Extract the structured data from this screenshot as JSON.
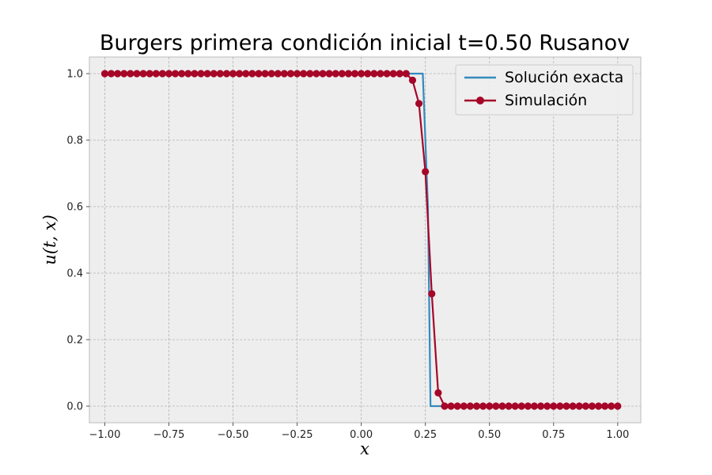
{
  "chart_data": {
    "type": "line",
    "title": "Burgers primera condición inicial t=0.50 Rusanov",
    "xlabel": "x",
    "ylabel": "u(t, x)",
    "xlim": [
      -1.06,
      1.09
    ],
    "ylim": [
      -0.05,
      1.05
    ],
    "x_ticks": [
      -1.0,
      -0.75,
      -0.5,
      -0.25,
      0.0,
      0.25,
      0.5,
      0.75,
      1.0
    ],
    "x_tick_labels": [
      "−1.00",
      "−0.75",
      "−0.50",
      "−0.25",
      "0.00",
      "0.25",
      "0.50",
      "0.75",
      "1.00"
    ],
    "y_ticks": [
      0.0,
      0.2,
      0.4,
      0.6,
      0.8,
      1.0
    ],
    "y_tick_labels": [
      "0.0",
      "0.2",
      "0.4",
      "0.6",
      "0.8",
      "1.0"
    ],
    "grid": true,
    "legend": "top-right",
    "colors": {
      "exact": "#348abd",
      "simulation": "#a60628",
      "axes_bg": "#eeeeee",
      "grid": "#b2b2b2",
      "spine": "#bcbcbc"
    },
    "series": [
      {
        "name": "Solución exacta",
        "marker": "none",
        "x": [
          -1.0,
          0.24,
          0.26,
          0.27,
          1.0
        ],
        "y": [
          1.0,
          1.0,
          0.6,
          0.0,
          0.0
        ]
      },
      {
        "name": "Simulación",
        "marker": "o",
        "x": [
          -1.0,
          -0.975,
          -0.95,
          -0.925,
          -0.9,
          -0.875,
          -0.85,
          -0.825,
          -0.8,
          -0.775,
          -0.75,
          -0.725,
          -0.7,
          -0.675,
          -0.65,
          -0.625,
          -0.6,
          -0.575,
          -0.55,
          -0.525,
          -0.5,
          -0.475,
          -0.45,
          -0.425,
          -0.4,
          -0.375,
          -0.35,
          -0.325,
          -0.3,
          -0.275,
          -0.25,
          -0.225,
          -0.2,
          -0.175,
          -0.15,
          -0.125,
          -0.1,
          -0.075,
          -0.05,
          -0.025,
          0.0,
          0.025,
          0.05,
          0.075,
          0.1,
          0.125,
          0.15,
          0.175,
          0.2,
          0.225,
          0.25,
          0.275,
          0.3,
          0.325,
          0.35,
          0.375,
          0.4,
          0.425,
          0.45,
          0.475,
          0.5,
          0.525,
          0.55,
          0.575,
          0.6,
          0.625,
          0.65,
          0.675,
          0.7,
          0.725,
          0.75,
          0.775,
          0.8,
          0.825,
          0.85,
          0.875,
          0.9,
          0.925,
          0.95,
          0.975,
          1.0
        ],
        "y": [
          1.0,
          1.0,
          1.0,
          1.0,
          1.0,
          1.0,
          1.0,
          1.0,
          1.0,
          1.0,
          1.0,
          1.0,
          1.0,
          1.0,
          1.0,
          1.0,
          1.0,
          1.0,
          1.0,
          1.0,
          1.0,
          1.0,
          1.0,
          1.0,
          1.0,
          1.0,
          1.0,
          1.0,
          1.0,
          1.0,
          1.0,
          1.0,
          1.0,
          1.0,
          1.0,
          1.0,
          1.0,
          1.0,
          1.0,
          1.0,
          1.0,
          1.0,
          1.0,
          1.0,
          1.0,
          1.0,
          1.0,
          1.0,
          0.98,
          0.91,
          0.705,
          0.338,
          0.04,
          0.0,
          0.0,
          0.0,
          0.0,
          0.0,
          0.0,
          0.0,
          0.0,
          0.0,
          0.0,
          0.0,
          0.0,
          0.0,
          0.0,
          0.0,
          0.0,
          0.0,
          0.0,
          0.0,
          0.0,
          0.0,
          0.0,
          0.0,
          0.0,
          0.0,
          0.0,
          0.0,
          0.0
        ]
      }
    ]
  }
}
